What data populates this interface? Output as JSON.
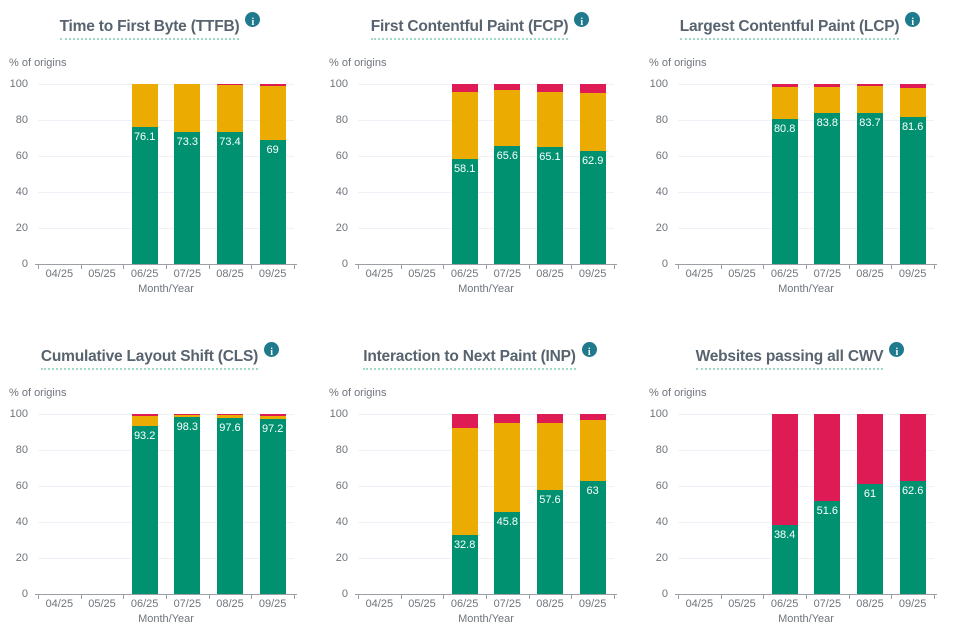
{
  "colors": {
    "good": "#009270",
    "needs_improvement": "#ebab00",
    "poor": "#de1b54",
    "title_text": "#57636e",
    "axis_text": "#6f757c",
    "gridline": "#eef2f8",
    "axis_line": "#9aa0a6",
    "title_underline": "#9fd9c6",
    "info_icon_bg": "#1e7a8c",
    "bar_label_text": "#ffffff"
  },
  "icons": {
    "info_glyph": "i"
  },
  "chart_data": [
    {
      "type": "bar",
      "stacked": true,
      "title": "Time to First Byte (TTFB)",
      "ylabel": "% of origins",
      "xlabel": "Month/Year",
      "ylim": [
        0,
        100
      ],
      "yticks": [
        0,
        20,
        40,
        60,
        80,
        100
      ],
      "grid": true,
      "legend": "none",
      "categories": [
        "04/25",
        "05/25",
        "06/25",
        "07/25",
        "08/25",
        "09/25"
      ],
      "series": [
        {
          "name": "good",
          "color_key": "good",
          "values": [
            null,
            null,
            76.1,
            73.3,
            73.4,
            69
          ]
        },
        {
          "name": "needs improvement",
          "color_key": "needs_improvement",
          "values": [
            null,
            null,
            23.9,
            26.7,
            26.1,
            30
          ]
        },
        {
          "name": "poor",
          "color_key": "poor",
          "values": [
            null,
            null,
            0,
            0,
            0.5,
            1
          ]
        }
      ],
      "bar_labels": [
        null,
        null,
        "76.1",
        "73.3",
        "73.4",
        "69"
      ]
    },
    {
      "type": "bar",
      "stacked": true,
      "title": "First Contentful Paint (FCP)",
      "ylabel": "% of origins",
      "xlabel": "Month/Year",
      "ylim": [
        0,
        100
      ],
      "yticks": [
        0,
        20,
        40,
        60,
        80,
        100
      ],
      "grid": true,
      "legend": "none",
      "categories": [
        "04/25",
        "05/25",
        "06/25",
        "07/25",
        "08/25",
        "09/25"
      ],
      "series": [
        {
          "name": "good",
          "color_key": "good",
          "values": [
            null,
            null,
            58.1,
            65.6,
            65.1,
            62.9
          ]
        },
        {
          "name": "needs improvement",
          "color_key": "needs_improvement",
          "values": [
            null,
            null,
            37.4,
            31.1,
            30.4,
            32.1
          ]
        },
        {
          "name": "poor",
          "color_key": "poor",
          "values": [
            null,
            null,
            4.5,
            3.3,
            4.5,
            5
          ]
        }
      ],
      "bar_labels": [
        null,
        null,
        "58.1",
        "65.6",
        "65.1",
        "62.9"
      ]
    },
    {
      "type": "bar",
      "stacked": true,
      "title": "Largest Contentful Paint (LCP)",
      "ylabel": "% of origins",
      "xlabel": "Month/Year",
      "ylim": [
        0,
        100
      ],
      "yticks": [
        0,
        20,
        40,
        60,
        80,
        100
      ],
      "grid": true,
      "legend": "none",
      "categories": [
        "04/25",
        "05/25",
        "06/25",
        "07/25",
        "08/25",
        "09/25"
      ],
      "series": [
        {
          "name": "good",
          "color_key": "good",
          "values": [
            null,
            null,
            80.8,
            83.8,
            83.7,
            81.6
          ]
        },
        {
          "name": "needs improvement",
          "color_key": "needs_improvement",
          "values": [
            null,
            null,
            17.7,
            14.7,
            15.3,
            16.4
          ]
        },
        {
          "name": "poor",
          "color_key": "poor",
          "values": [
            null,
            null,
            1.5,
            1.5,
            1,
            2
          ]
        }
      ],
      "bar_labels": [
        null,
        null,
        "80.8",
        "83.8",
        "83.7",
        "81.6"
      ]
    },
    {
      "type": "bar",
      "stacked": true,
      "title": "Cumulative Layout Shift (CLS)",
      "ylabel": "% of origins",
      "xlabel": "Month/Year",
      "ylim": [
        0,
        100
      ],
      "yticks": [
        0,
        20,
        40,
        60,
        80,
        100
      ],
      "grid": true,
      "legend": "none",
      "categories": [
        "04/25",
        "05/25",
        "06/25",
        "07/25",
        "08/25",
        "09/25"
      ],
      "series": [
        {
          "name": "good",
          "color_key": "good",
          "values": [
            null,
            null,
            93.2,
            98.3,
            97.6,
            97.2
          ]
        },
        {
          "name": "needs improvement",
          "color_key": "needs_improvement",
          "values": [
            null,
            null,
            5.6,
            1.2,
            1.8,
            1.7
          ]
        },
        {
          "name": "poor",
          "color_key": "poor",
          "values": [
            null,
            null,
            1.2,
            0.5,
            0.6,
            1.1
          ]
        }
      ],
      "bar_labels": [
        null,
        null,
        "93.2",
        "98.3",
        "97.6",
        "97.2"
      ]
    },
    {
      "type": "bar",
      "stacked": true,
      "title": "Interaction to Next Paint (INP)",
      "ylabel": "% of origins",
      "xlabel": "Month/Year",
      "ylim": [
        0,
        100
      ],
      "yticks": [
        0,
        20,
        40,
        60,
        80,
        100
      ],
      "grid": true,
      "legend": "none",
      "categories": [
        "04/25",
        "05/25",
        "06/25",
        "07/25",
        "08/25",
        "09/25"
      ],
      "series": [
        {
          "name": "good",
          "color_key": "good",
          "values": [
            null,
            null,
            32.8,
            45.8,
            57.6,
            63
          ]
        },
        {
          "name": "needs improvement",
          "color_key": "needs_improvement",
          "values": [
            null,
            null,
            59.2,
            49.2,
            37.2,
            33.5
          ]
        },
        {
          "name": "poor",
          "color_key": "poor",
          "values": [
            null,
            null,
            8,
            5,
            5.2,
            3.5
          ]
        }
      ],
      "bar_labels": [
        null,
        null,
        "32.8",
        "45.8",
        "57.6",
        "63"
      ]
    },
    {
      "type": "bar",
      "stacked": true,
      "title": "Websites passing all CWV",
      "ylabel": "% of origins",
      "xlabel": "Month/Year",
      "ylim": [
        0,
        100
      ],
      "yticks": [
        0,
        20,
        40,
        60,
        80,
        100
      ],
      "grid": true,
      "legend": "none",
      "categories": [
        "04/25",
        "05/25",
        "06/25",
        "07/25",
        "08/25",
        "09/25"
      ],
      "series": [
        {
          "name": "good",
          "color_key": "good",
          "values": [
            null,
            null,
            38.4,
            51.6,
            61,
            62.6
          ]
        },
        {
          "name": "needs improvement",
          "color_key": "needs_improvement",
          "values": [
            null,
            null,
            0,
            0,
            0,
            0
          ]
        },
        {
          "name": "poor",
          "color_key": "poor",
          "values": [
            null,
            null,
            61.6,
            48.4,
            39,
            37.4
          ]
        }
      ],
      "bar_labels": [
        null,
        null,
        "38.4",
        "51.6",
        "61",
        "62.6"
      ]
    }
  ]
}
